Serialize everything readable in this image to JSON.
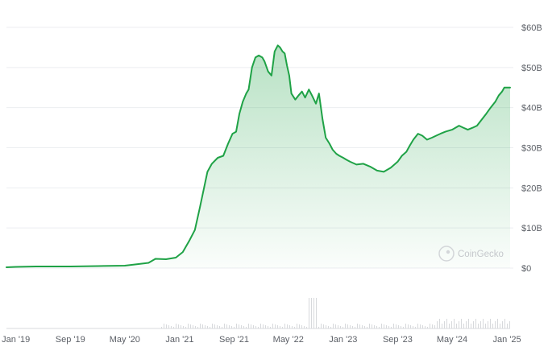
{
  "chart_data": {
    "type": "area",
    "title": "",
    "xlabel": "",
    "ylabel": "",
    "watermark": "CoinGecko",
    "grid": true,
    "line_color": "#1fa246",
    "fill_color": "#1fa246",
    "volume_color": "#d7d9dc",
    "ylim": [
      0,
      60000000000
    ],
    "y_ticks": [
      {
        "value": 0,
        "label": "$0"
      },
      {
        "value": 10000000000,
        "label": "$10B"
      },
      {
        "value": 20000000000,
        "label": "$20B"
      },
      {
        "value": 30000000000,
        "label": "$30B"
      },
      {
        "value": 40000000000,
        "label": "$40B"
      },
      {
        "value": 50000000000,
        "label": "$50B"
      },
      {
        "value": 60000000000,
        "label": "$60B"
      }
    ],
    "xlim": [
      "2018-11-20",
      "2025-01-15"
    ],
    "x_ticks": [
      {
        "value": "2019-01-01",
        "label": "Jan '19"
      },
      {
        "value": "2019-09-01",
        "label": "Sep '19"
      },
      {
        "value": "2020-05-01",
        "label": "May '20"
      },
      {
        "value": "2021-01-01",
        "label": "Jan '21"
      },
      {
        "value": "2021-09-01",
        "label": "Sep '21"
      },
      {
        "value": "2022-05-01",
        "label": "May '22"
      },
      {
        "value": "2023-01-01",
        "label": "Jan '23"
      },
      {
        "value": "2023-09-01",
        "label": "Sep '23"
      },
      {
        "value": "2024-05-01",
        "label": "May '24"
      },
      {
        "value": "2025-01-01",
        "label": "Jan '25"
      }
    ],
    "series": [
      {
        "x": [
          "2018-11-20",
          "2019-01-01",
          "2019-04-01",
          "2019-09-01",
          "2020-01-01",
          "2020-05-01",
          "2020-07-01",
          "2020-08-15",
          "2020-09-15",
          "2020-11-01",
          "2020-12-15",
          "2021-01-15",
          "2021-02-15",
          "2021-03-10",
          "2021-04-01",
          "2021-04-20",
          "2021-05-05",
          "2021-05-25",
          "2021-06-20",
          "2021-07-15",
          "2021-08-05",
          "2021-08-25",
          "2021-09-10",
          "2021-09-25",
          "2021-10-10",
          "2021-10-25",
          "2021-11-05",
          "2021-11-20",
          "2021-12-05",
          "2021-12-20",
          "2022-01-05",
          "2022-01-15",
          "2022-01-31",
          "2022-02-15",
          "2022-03-01",
          "2022-03-15",
          "2022-03-25",
          "2022-04-05",
          "2022-04-15",
          "2022-04-25",
          "2022-05-05",
          "2022-05-15",
          "2022-06-01",
          "2022-06-15",
          "2022-07-01",
          "2022-07-15",
          "2022-08-01",
          "2022-08-15",
          "2022-09-01",
          "2022-09-15",
          "2022-10-01",
          "2022-10-15",
          "2022-11-01",
          "2022-11-15",
          "2022-12-01",
          "2022-12-15",
          "2023-01-01",
          "2023-01-15",
          "2023-02-01",
          "2023-03-01",
          "2023-04-01",
          "2023-05-01",
          "2023-06-01",
          "2023-07-01",
          "2023-08-01",
          "2023-09-01",
          "2023-09-20",
          "2023-10-10",
          "2023-10-25",
          "2023-11-10",
          "2023-12-01",
          "2023-12-20",
          "2024-01-10",
          "2024-02-01",
          "2024-02-20",
          "2024-03-10",
          "2024-04-01",
          "2024-05-01",
          "2024-06-01",
          "2024-06-20",
          "2024-07-10",
          "2024-08-01",
          "2024-08-20",
          "2024-09-10",
          "2024-10-01",
          "2024-10-20",
          "2024-11-10",
          "2024-11-25",
          "2024-12-10",
          "2024-12-20",
          "2025-01-01",
          "2025-01-08",
          "2025-01-15"
        ],
        "values": [
          0.2,
          0.3,
          0.4,
          0.4,
          0.5,
          0.6,
          1.0,
          1.3,
          2.3,
          2.2,
          2.6,
          4.0,
          7.0,
          9.5,
          15.0,
          20.0,
          24.0,
          26.0,
          27.5,
          28.0,
          31.0,
          33.5,
          34.0,
          38.5,
          41.5,
          43.5,
          44.5,
          50.0,
          52.5,
          53.0,
          52.5,
          51.5,
          49.0,
          48.0,
          54.0,
          55.5,
          55.0,
          54.0,
          53.5,
          50.5,
          48.0,
          43.5,
          42.0,
          43.0,
          44.0,
          42.5,
          44.5,
          43.0,
          41.0,
          43.5,
          37.0,
          32.5,
          31.0,
          29.5,
          28.5,
          28.0,
          27.5,
          27.0,
          26.5,
          25.8,
          26.0,
          25.3,
          24.3,
          24.0,
          25.0,
          26.5,
          28.0,
          29.0,
          30.5,
          32.0,
          33.5,
          33.0,
          32.0,
          32.5,
          33.0,
          33.5,
          34.0,
          34.5,
          35.5,
          35.0,
          34.5,
          35.0,
          35.5,
          37.0,
          38.5,
          40.0,
          41.5,
          43.0,
          44.0,
          45.0,
          45.0,
          45.0,
          45.0
        ]
      }
    ]
  }
}
